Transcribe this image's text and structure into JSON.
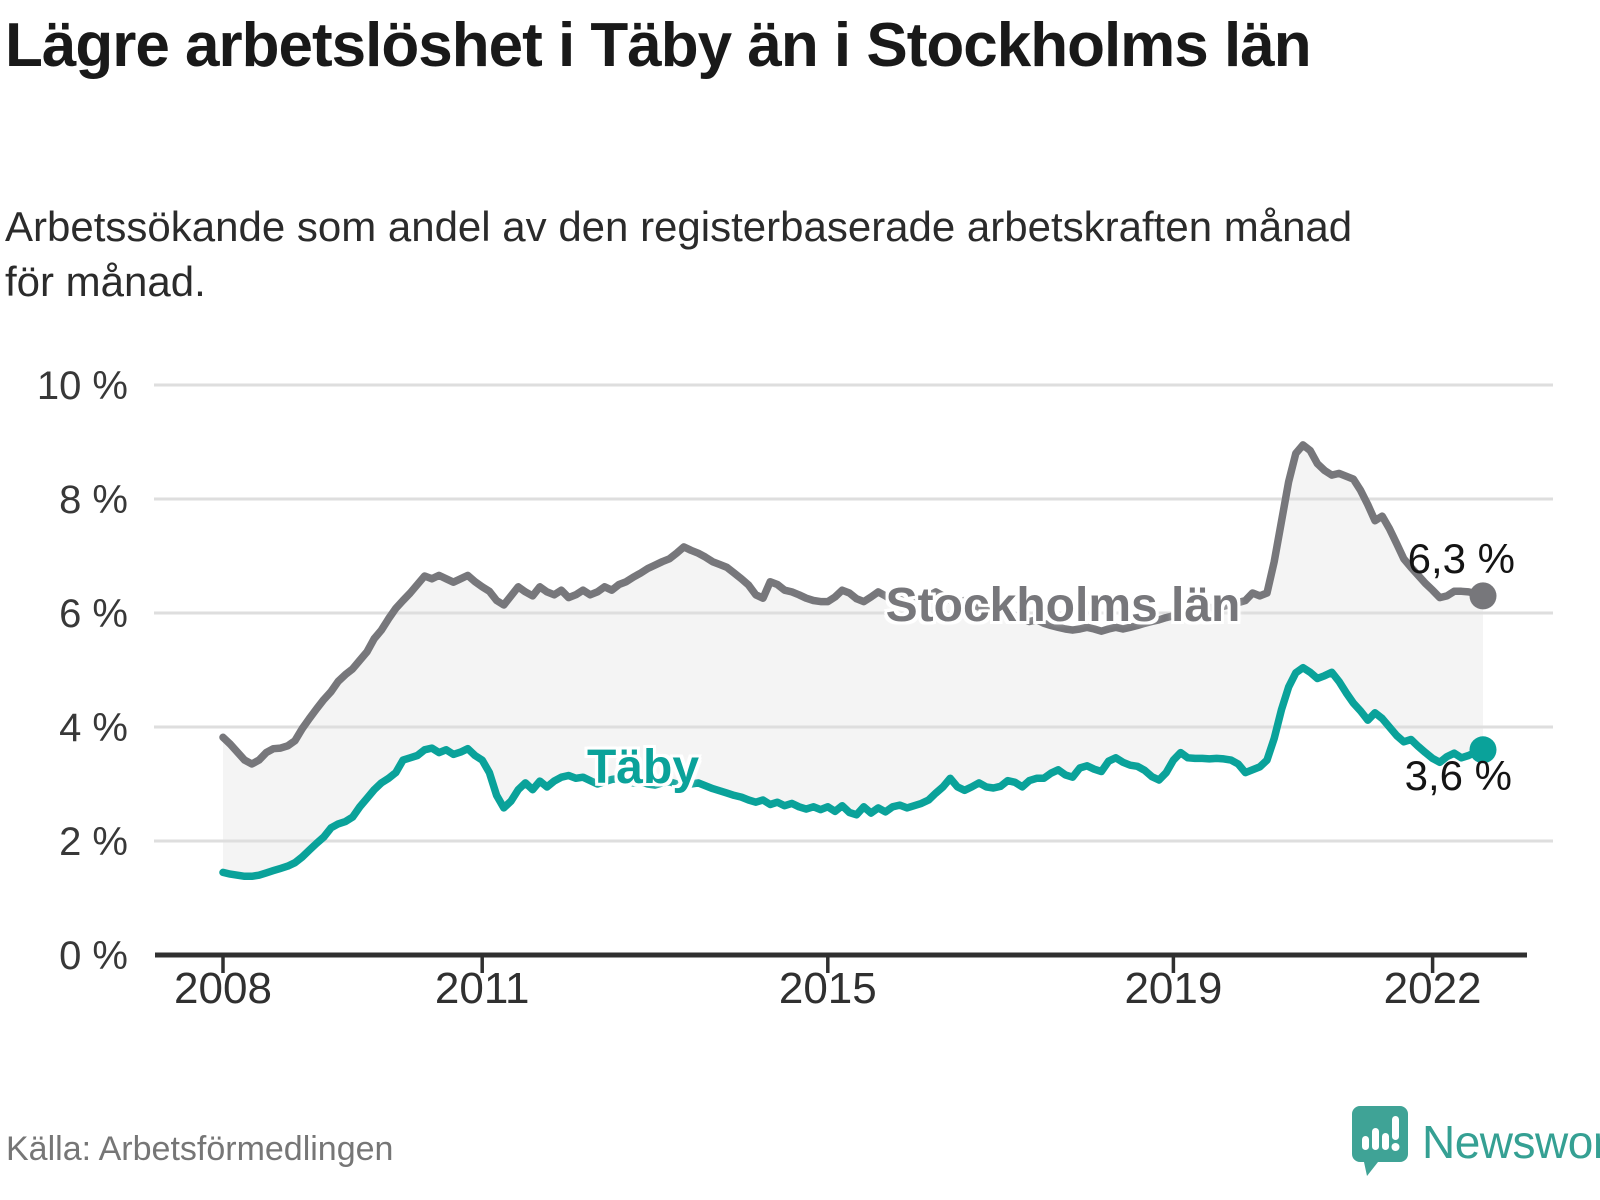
{
  "header": {
    "title": "Lägre arbetslöshet i Täby än i Stockholms län",
    "title_lines": [
      "Lägre arbetslöshet i Täby än i Stockholms",
      "län"
    ],
    "subtitle": "Arbetssökande som andel av den registerbaserade arbetskraften månad för månad.",
    "subtitle_lines": [
      "Arbetssökande som andel av den registerbaserade arbetskraften månad",
      "för månad."
    ]
  },
  "chart_data": {
    "type": "line",
    "title": "Lägre arbetslöshet i Täby än i Stockholms län",
    "ylabel": "",
    "xlabel": "",
    "unit": "percent of registered labour force",
    "frequency": "monthly",
    "start": "2008-01",
    "end": "2022-08",
    "ylim": [
      0,
      10
    ],
    "grid": "horizontal",
    "y_tick_labels": [
      "0 %",
      "2 %",
      "4 %",
      "6 %",
      "8 %",
      "10 %"
    ],
    "y_tick_values": [
      0,
      2,
      4,
      6,
      8,
      10
    ],
    "x_tick_labels": [
      "2008",
      "2011",
      "2015",
      "2019",
      "2022"
    ],
    "x_tick_years": [
      2008,
      2011,
      2015,
      2019,
      2022
    ],
    "area_between_series_fill": "#f4f4f4",
    "axis_color": "#303030",
    "gridline_color": "#dedede",
    "series": [
      {
        "name": "Stockholms län",
        "color": "#77777b",
        "end_label": "6,3 %",
        "end_value": 6.3,
        "values": [
          3.82,
          3.7,
          3.56,
          3.42,
          3.35,
          3.42,
          3.55,
          3.62,
          3.63,
          3.67,
          3.76,
          3.97,
          4.15,
          4.32,
          4.48,
          4.62,
          4.8,
          4.92,
          5.02,
          5.17,
          5.32,
          5.55,
          5.7,
          5.9,
          6.08,
          6.22,
          6.35,
          6.5,
          6.65,
          6.6,
          6.66,
          6.6,
          6.54,
          6.6,
          6.66,
          6.55,
          6.46,
          6.38,
          6.22,
          6.14,
          6.3,
          6.46,
          6.37,
          6.3,
          6.46,
          6.37,
          6.32,
          6.4,
          6.27,
          6.32,
          6.4,
          6.32,
          6.37,
          6.46,
          6.4,
          6.5,
          6.55,
          6.63,
          6.7,
          6.78,
          6.84,
          6.9,
          6.95,
          7.05,
          7.16,
          7.1,
          7.05,
          6.98,
          6.9,
          6.85,
          6.8,
          6.7,
          6.6,
          6.49,
          6.32,
          6.26,
          6.55,
          6.5,
          6.4,
          6.37,
          6.32,
          6.26,
          6.22,
          6.2,
          6.2,
          6.28,
          6.4,
          6.35,
          6.25,
          6.2,
          6.28,
          6.37,
          6.3,
          6.22,
          6.28,
          6.35,
          6.3,
          6.25,
          6.3,
          6.37,
          6.3,
          6.22,
          6.18,
          6.22,
          6.15,
          6.1,
          6.05,
          6.0,
          5.98,
          6.02,
          5.95,
          5.9,
          5.85,
          5.88,
          5.82,
          5.78,
          5.75,
          5.72,
          5.7,
          5.72,
          5.75,
          5.72,
          5.68,
          5.72,
          5.75,
          5.72,
          5.75,
          5.78,
          5.82,
          5.85,
          5.88,
          5.92,
          5.95,
          5.98,
          6.02,
          6.05,
          6.08,
          6.1,
          6.08,
          6.12,
          6.15,
          6.18,
          6.22,
          6.35,
          6.3,
          6.35,
          6.9,
          7.6,
          8.3,
          8.8,
          8.95,
          8.85,
          8.62,
          8.5,
          8.42,
          8.45,
          8.4,
          8.35,
          8.15,
          7.9,
          7.62,
          7.7,
          7.48,
          7.22,
          6.95,
          6.8,
          6.66,
          6.52,
          6.4,
          6.27,
          6.3,
          6.38,
          6.38,
          6.37,
          6.34,
          6.3
        ]
      },
      {
        "name": "Täby",
        "color": "#0aa29a",
        "end_label": "3,6 %",
        "end_value": 3.6,
        "values": [
          1.45,
          1.42,
          1.4,
          1.38,
          1.38,
          1.4,
          1.44,
          1.48,
          1.52,
          1.56,
          1.62,
          1.72,
          1.84,
          1.96,
          2.07,
          2.23,
          2.3,
          2.34,
          2.42,
          2.6,
          2.75,
          2.9,
          3.02,
          3.1,
          3.2,
          3.42,
          3.46,
          3.5,
          3.6,
          3.63,
          3.55,
          3.6,
          3.52,
          3.56,
          3.62,
          3.5,
          3.42,
          3.2,
          2.8,
          2.58,
          2.7,
          2.9,
          3.02,
          2.9,
          3.05,
          2.95,
          3.05,
          3.12,
          3.15,
          3.1,
          3.12,
          3.06,
          3.0,
          3.04,
          3.08,
          3.1,
          3.06,
          3.02,
          3.04,
          3.0,
          2.98,
          3.02,
          3.04,
          3.0,
          2.97,
          3.0,
          3.02,
          2.97,
          2.92,
          2.88,
          2.84,
          2.8,
          2.77,
          2.72,
          2.68,
          2.72,
          2.64,
          2.68,
          2.62,
          2.66,
          2.6,
          2.56,
          2.6,
          2.55,
          2.6,
          2.52,
          2.62,
          2.5,
          2.46,
          2.6,
          2.49,
          2.58,
          2.51,
          2.6,
          2.63,
          2.58,
          2.62,
          2.66,
          2.72,
          2.84,
          2.95,
          3.1,
          2.95,
          2.89,
          2.95,
          3.02,
          2.95,
          2.93,
          2.96,
          3.06,
          3.03,
          2.95,
          3.06,
          3.1,
          3.1,
          3.19,
          3.25,
          3.16,
          3.12,
          3.28,
          3.32,
          3.26,
          3.22,
          3.4,
          3.46,
          3.38,
          3.33,
          3.31,
          3.24,
          3.13,
          3.07,
          3.2,
          3.42,
          3.55,
          3.46,
          3.45,
          3.45,
          3.44,
          3.45,
          3.44,
          3.42,
          3.35,
          3.2,
          3.25,
          3.3,
          3.42,
          3.8,
          4.3,
          4.7,
          4.95,
          5.04,
          4.96,
          4.85,
          4.9,
          4.96,
          4.8,
          4.6,
          4.42,
          4.28,
          4.12,
          4.25,
          4.15,
          4.0,
          3.85,
          3.74,
          3.78,
          3.66,
          3.55,
          3.45,
          3.38,
          3.48,
          3.54,
          3.46,
          3.5,
          3.56,
          3.6
        ]
      }
    ]
  },
  "footer": {
    "source": "Källa: Arbetsförmedlingen",
    "brand": "Newsworthy"
  }
}
